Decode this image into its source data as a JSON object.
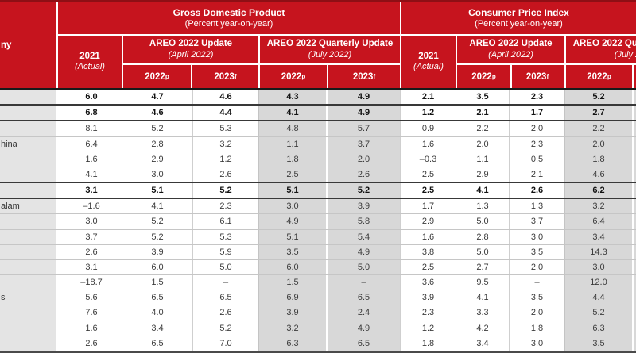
{
  "table": {
    "economy_header_visible": "ny",
    "sections": [
      {
        "title": "Gross Domestic Product",
        "subtitle": "(Percent year-on-year)"
      },
      {
        "title": "Consumer Price Index",
        "subtitle": "(Percent year-on-year)"
      }
    ],
    "col_2021": {
      "label": "2021",
      "sublabel": "(Actual)"
    },
    "groups": {
      "april": {
        "name": "AREO 2022 Update",
        "date": "(April 2022)"
      },
      "july": {
        "name": "AREO 2022 Quarterly Update",
        "date": "(July 2022)"
      }
    },
    "subcols": {
      "y2022": "2022",
      "sup_p": "p",
      "y2023": "2023",
      "sup_f": "f"
    },
    "rows": [
      {
        "name_visible": "",
        "bold": true,
        "gdp": [
          "6.0",
          "4.7",
          "4.6",
          "4.3",
          "4.9"
        ],
        "cpi": [
          "2.1",
          "3.5",
          "2.3",
          "5.2"
        ]
      },
      {
        "name_visible": "",
        "bold": true,
        "gdp": [
          "6.8",
          "4.6",
          "4.4",
          "4.1",
          "4.9"
        ],
        "cpi": [
          "1.2",
          "2.1",
          "1.7",
          "2.7"
        ]
      },
      {
        "name_visible": "",
        "bold": false,
        "gdp": [
          "8.1",
          "5.2",
          "5.3",
          "4.8",
          "5.7"
        ],
        "cpi": [
          "0.9",
          "2.2",
          "2.0",
          "2.2"
        ]
      },
      {
        "name_visible": "hina",
        "bold": false,
        "gdp": [
          "6.4",
          "2.8",
          "3.2",
          "1.1",
          "3.7"
        ],
        "cpi": [
          "1.6",
          "2.0",
          "2.3",
          "2.0"
        ]
      },
      {
        "name_visible": "",
        "bold": false,
        "gdp": [
          "1.6",
          "2.9",
          "1.2",
          "1.8",
          "2.0"
        ],
        "cpi": [
          "–0.3",
          "1.1",
          "0.5",
          "1.8"
        ]
      },
      {
        "name_visible": "",
        "bold": false,
        "gdp": [
          "4.1",
          "3.0",
          "2.6",
          "2.5",
          "2.6"
        ],
        "cpi": [
          "2.5",
          "2.9",
          "2.1",
          "4.6"
        ]
      },
      {
        "name_visible": "",
        "bold": true,
        "gdp": [
          "3.1",
          "5.1",
          "5.2",
          "5.1",
          "5.2"
        ],
        "cpi": [
          "2.5",
          "4.1",
          "2.6",
          "6.2"
        ]
      },
      {
        "name_visible": "alam",
        "bold": false,
        "gdp": [
          "–1.6",
          "4.1",
          "2.3",
          "3.0",
          "3.9"
        ],
        "cpi": [
          "1.7",
          "1.3",
          "1.3",
          "3.2"
        ]
      },
      {
        "name_visible": "",
        "bold": false,
        "gdp": [
          "3.0",
          "5.2",
          "6.1",
          "4.9",
          "5.8"
        ],
        "cpi": [
          "2.9",
          "5.0",
          "3.7",
          "6.4"
        ]
      },
      {
        "name_visible": "",
        "bold": false,
        "gdp": [
          "3.7",
          "5.2",
          "5.3",
          "5.1",
          "5.4"
        ],
        "cpi": [
          "1.6",
          "2.8",
          "3.0",
          "3.4"
        ]
      },
      {
        "name_visible": "",
        "bold": false,
        "gdp": [
          "2.6",
          "3.9",
          "5.9",
          "3.5",
          "4.9"
        ],
        "cpi": [
          "3.8",
          "5.0",
          "3.5",
          "14.3"
        ]
      },
      {
        "name_visible": "",
        "bold": false,
        "gdp": [
          "3.1",
          "6.0",
          "5.0",
          "6.0",
          "5.0"
        ],
        "cpi": [
          "2.5",
          "2.7",
          "2.0",
          "3.0"
        ]
      },
      {
        "name_visible": "",
        "bold": false,
        "gdp": [
          "–18.7",
          "1.5",
          "–",
          "1.5",
          "–"
        ],
        "cpi": [
          "3.6",
          "9.5",
          "–",
          "12.0"
        ]
      },
      {
        "name_visible": "s",
        "bold": false,
        "gdp": [
          "5.6",
          "6.5",
          "6.5",
          "6.9",
          "6.5"
        ],
        "cpi": [
          "3.9",
          "4.1",
          "3.5",
          "4.4"
        ]
      },
      {
        "name_visible": "",
        "bold": false,
        "gdp": [
          "7.6",
          "4.0",
          "2.6",
          "3.9",
          "2.4"
        ],
        "cpi": [
          "2.3",
          "3.3",
          "2.0",
          "5.2"
        ]
      },
      {
        "name_visible": "",
        "bold": false,
        "gdp": [
          "1.6",
          "3.4",
          "5.2",
          "3.2",
          "4.9"
        ],
        "cpi": [
          "1.2",
          "4.2",
          "1.8",
          "6.3"
        ]
      },
      {
        "name_visible": "",
        "bold": false,
        "gdp": [
          "2.6",
          "6.5",
          "7.0",
          "6.3",
          "6.5"
        ],
        "cpi": [
          "1.8",
          "3.4",
          "3.0",
          "3.5"
        ]
      }
    ]
  }
}
